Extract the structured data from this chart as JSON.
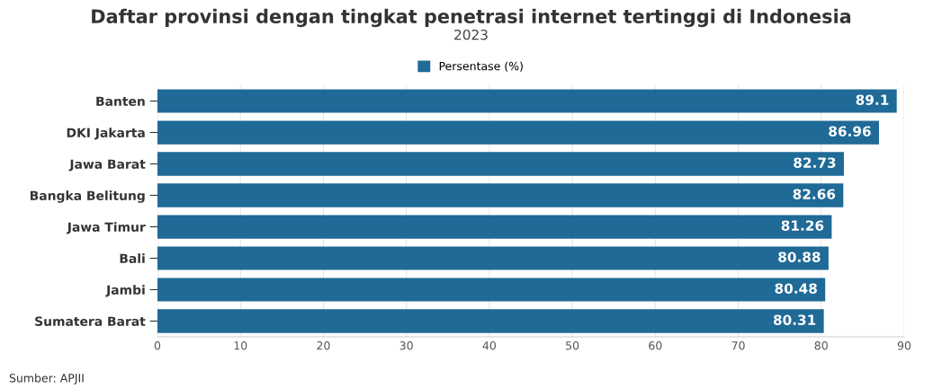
{
  "chart_data": {
    "type": "bar",
    "orientation": "horizontal",
    "title": "Daftar provinsi dengan tingkat penetrasi internet tertinggi di Indonesia",
    "subtitle": "2023",
    "categories": [
      "Banten",
      "DKI Jakarta",
      "Jawa Barat",
      "Bangka Belitung",
      "Jawa Timur",
      "Bali",
      "Jambi",
      "Sumatera Barat"
    ],
    "series": [
      {
        "name": "Persentase (%)",
        "color": "#1f6a96",
        "values": [
          89.1,
          86.96,
          82.73,
          82.66,
          81.26,
          80.88,
          80.48,
          80.31
        ]
      }
    ],
    "xlim": [
      0,
      90
    ],
    "xticks": [
      0,
      10,
      20,
      30,
      40,
      50,
      60,
      70,
      80,
      90
    ],
    "grid": "x",
    "legend": "top",
    "data_labels": true,
    "annotations": [
      "Sumber: APJII"
    ]
  }
}
